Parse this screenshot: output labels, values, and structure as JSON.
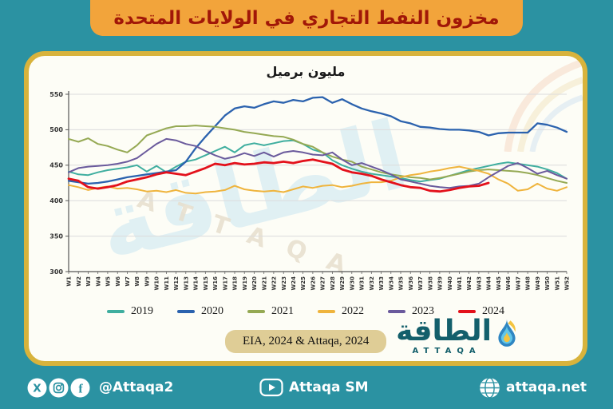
{
  "banner": {
    "title": "مخزون النفط التجاري في الولايات المتحدة"
  },
  "chart_data": {
    "type": "line",
    "title": "مليون برميل",
    "x_labels": [
      "W1",
      "W2",
      "W3",
      "W4",
      "W5",
      "W6",
      "W7",
      "W8",
      "W9",
      "W10",
      "W11",
      "W12",
      "W13",
      "W14",
      "W15",
      "W16",
      "W17",
      "W18",
      "W19",
      "W20",
      "W21",
      "W22",
      "W23",
      "W24",
      "W25",
      "W26",
      "W27",
      "W28",
      "W29",
      "W30",
      "W31",
      "W32",
      "W33",
      "W34",
      "W35",
      "W36",
      "W37",
      "W38",
      "W39",
      "W40",
      "W41",
      "W42",
      "W43",
      "W44",
      "W45",
      "W46",
      "W47",
      "W48",
      "W49",
      "W50",
      "W51",
      "W52"
    ],
    "y_ticks": [
      300,
      350,
      400,
      450,
      500,
      550
    ],
    "ylim": [
      300,
      550
    ],
    "grid": "horizontal",
    "legend_position": "bottom",
    "series": [
      {
        "name": "2019",
        "color": "#3FAE9F",
        "values": [
          441,
          437,
          436,
          440,
          443,
          445,
          447,
          450,
          441,
          449,
          440,
          448,
          455,
          458,
          464,
          470,
          476,
          468,
          478,
          481,
          478,
          481,
          484,
          485,
          480,
          472,
          468,
          457,
          450,
          445,
          441,
          438,
          436,
          434,
          432,
          429,
          427,
          429,
          431,
          435,
          439,
          443,
          446,
          449,
          452,
          454,
          452,
          450,
          448,
          444,
          439,
          431
        ]
      },
      {
        "name": "2020",
        "color": "#2B62AE",
        "values": [
          428,
          426,
          424,
          425,
          427,
          430,
          433,
          435,
          437,
          439,
          441,
          443,
          455,
          474,
          490,
          505,
          520,
          530,
          533,
          531,
          536,
          540,
          538,
          542,
          540,
          545,
          546,
          538,
          543,
          536,
          530,
          526,
          523,
          519,
          512,
          509,
          504,
          503,
          501,
          500,
          500,
          499,
          497,
          492,
          495,
          496,
          496,
          496,
          509,
          507,
          503,
          497
        ]
      },
      {
        "name": "2021",
        "color": "#95A953",
        "values": [
          487,
          483,
          488,
          480,
          477,
          472,
          468,
          478,
          492,
          497,
          502,
          505,
          505,
          506,
          505,
          504,
          502,
          500,
          497,
          495,
          493,
          491,
          490,
          486,
          480,
          476,
          468,
          462,
          458,
          455,
          448,
          444,
          440,
          437,
          435,
          433,
          432,
          430,
          432,
          435,
          438,
          441,
          443,
          444,
          443,
          442,
          441,
          439,
          436,
          432,
          428,
          425
        ]
      },
      {
        "name": "2022",
        "color": "#EFB43D",
        "values": [
          422,
          419,
          415,
          418,
          420,
          417,
          418,
          416,
          413,
          414,
          412,
          415,
          411,
          410,
          412,
          413,
          415,
          421,
          416,
          414,
          413,
          414,
          412,
          416,
          420,
          418,
          421,
          422,
          419,
          421,
          424,
          426,
          426,
          428,
          433,
          436,
          438,
          441,
          443,
          446,
          448,
          445,
          442,
          438,
          430,
          424,
          414,
          416,
          424,
          417,
          414,
          419
        ]
      },
      {
        "name": "2023",
        "color": "#6A5A9C",
        "values": [
          440,
          446,
          448,
          449,
          450,
          452,
          455,
          460,
          470,
          480,
          487,
          485,
          480,
          477,
          470,
          464,
          459,
          462,
          467,
          463,
          468,
          462,
          468,
          470,
          468,
          465,
          464,
          468,
          458,
          450,
          453,
          448,
          443,
          437,
          430,
          427,
          424,
          421,
          419,
          418,
          420,
          421,
          424,
          433,
          441,
          449,
          453,
          446,
          438,
          442,
          436,
          431
        ]
      },
      {
        "name": "2024",
        "color": "#E3111B",
        "values": [
          431,
          428,
          419,
          417,
          419,
          422,
          427,
          430,
          433,
          437,
          440,
          438,
          436,
          441,
          446,
          452,
          450,
          453,
          451,
          452,
          454,
          453,
          455,
          453,
          456,
          458,
          455,
          452,
          444,
          440,
          438,
          435,
          430,
          426,
          422,
          419,
          418,
          414,
          413,
          415,
          418,
          420,
          421,
          425
        ]
      }
    ]
  },
  "source": {
    "label": "EIA, 2024 & Attaqa, 2024"
  },
  "logo": {
    "arabic": "الطاقة",
    "latin": "ATTAQA"
  },
  "watermark": {
    "arabic": "الطاقة",
    "latin": "ATTAQA"
  },
  "footer": {
    "social_handle": "@Attaqa2",
    "youtube_label": "Attaqa SM",
    "website": "attaqa.net",
    "icons": [
      "x-icon",
      "instagram-icon",
      "facebook-icon",
      "youtube-icon",
      "globe-icon"
    ]
  },
  "colors": {
    "page_background": "#2B92A2",
    "banner_background": "#F2A43B",
    "banner_text": "#A11708",
    "card_border": "#D8B33C",
    "card_background": "#FDFDF6",
    "source_pill_background": "#DFCD96",
    "logo_color": "#135F6B"
  }
}
